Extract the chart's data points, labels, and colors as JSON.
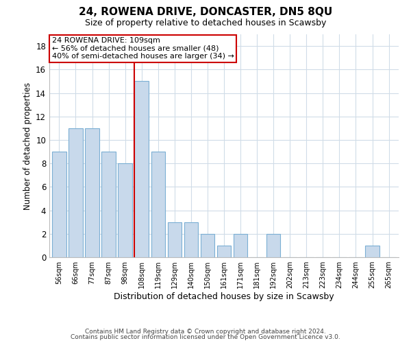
{
  "title": "24, ROWENA DRIVE, DONCASTER, DN5 8QU",
  "subtitle": "Size of property relative to detached houses in Scawsby",
  "xlabel": "Distribution of detached houses by size in Scawsby",
  "ylabel": "Number of detached properties",
  "bar_labels": [
    "56sqm",
    "66sqm",
    "77sqm",
    "87sqm",
    "98sqm",
    "108sqm",
    "119sqm",
    "129sqm",
    "140sqm",
    "150sqm",
    "161sqm",
    "171sqm",
    "181sqm",
    "192sqm",
    "202sqm",
    "213sqm",
    "223sqm",
    "234sqm",
    "244sqm",
    "255sqm",
    "265sqm"
  ],
  "bar_values": [
    9,
    11,
    11,
    9,
    8,
    15,
    9,
    3,
    3,
    2,
    1,
    2,
    0,
    2,
    0,
    0,
    0,
    0,
    0,
    1,
    0
  ],
  "bar_color": "#c8d9eb",
  "bar_edge_color": "#7bafd4",
  "highlight_bar_index": 5,
  "highlight_line_color": "#cc0000",
  "ylim": [
    0,
    19
  ],
  "yticks": [
    0,
    2,
    4,
    6,
    8,
    10,
    12,
    14,
    16,
    18
  ],
  "annotation_title": "24 ROWENA DRIVE: 109sqm",
  "annotation_line1": "← 56% of detached houses are smaller (48)",
  "annotation_line2": "40% of semi-detached houses are larger (34) →",
  "annotation_box_edge": "#cc0000",
  "footer_line1": "Contains HM Land Registry data © Crown copyright and database right 2024.",
  "footer_line2": "Contains public sector information licensed under the Open Government Licence v3.0.",
  "background_color": "#ffffff",
  "grid_color": "#d0dce8"
}
